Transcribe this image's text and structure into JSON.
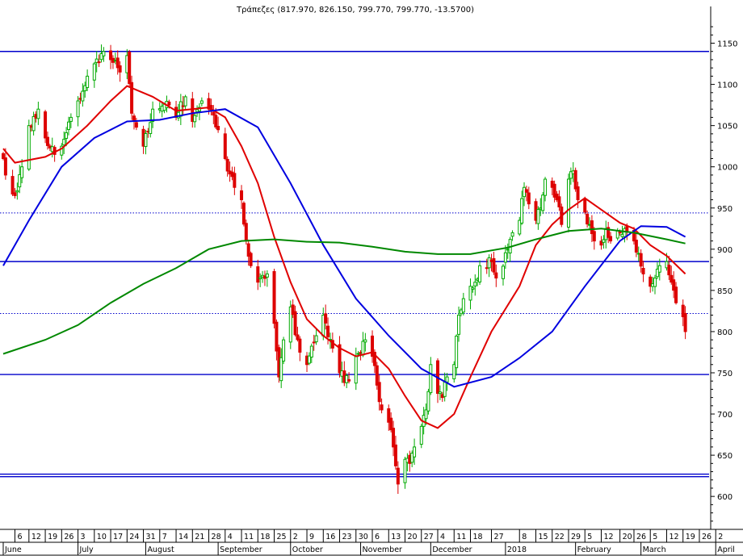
{
  "chart_data": {
    "type": "candlestick",
    "title": "Τράπεζες (817.970, 826.150, 799.770, 799.770, -13.5700)",
    "xlabel": "",
    "ylabel": "",
    "ylim": [
      560,
      1175
    ],
    "y_ticks": [
      600,
      650,
      700,
      750,
      800,
      850,
      900,
      950,
      1000,
      1050,
      1100,
      1150
    ],
    "x_range": [
      "2017-06-01",
      "2018-04-04"
    ],
    "x_day_ticks": [
      {
        "date": "2017-06-06",
        "label": "6"
      },
      {
        "date": "2017-06-12",
        "label": "12"
      },
      {
        "date": "2017-06-19",
        "label": "19"
      },
      {
        "date": "2017-06-26",
        "label": "26"
      },
      {
        "date": "2017-07-03",
        "label": "3"
      },
      {
        "date": "2017-07-10",
        "label": "10"
      },
      {
        "date": "2017-07-17",
        "label": "17"
      },
      {
        "date": "2017-07-24",
        "label": "24"
      },
      {
        "date": "2017-07-31",
        "label": "31"
      },
      {
        "date": "2017-08-07",
        "label": "7"
      },
      {
        "date": "2017-08-14",
        "label": "14"
      },
      {
        "date": "2017-08-21",
        "label": "21"
      },
      {
        "date": "2017-08-28",
        "label": "28"
      },
      {
        "date": "2017-09-04",
        "label": "4"
      },
      {
        "date": "2017-09-11",
        "label": "11"
      },
      {
        "date": "2017-09-18",
        "label": "18"
      },
      {
        "date": "2017-09-25",
        "label": "25"
      },
      {
        "date": "2017-10-02",
        "label": "2"
      },
      {
        "date": "2017-10-09",
        "label": "9"
      },
      {
        "date": "2017-10-16",
        "label": "16"
      },
      {
        "date": "2017-10-23",
        "label": "23"
      },
      {
        "date": "2017-10-30",
        "label": "30"
      },
      {
        "date": "2017-11-06",
        "label": "6"
      },
      {
        "date": "2017-11-13",
        "label": "13"
      },
      {
        "date": "2017-11-20",
        "label": "20"
      },
      {
        "date": "2017-11-27",
        "label": "27"
      },
      {
        "date": "2017-12-04",
        "label": "4"
      },
      {
        "date": "2017-12-11",
        "label": "11"
      },
      {
        "date": "2017-12-18",
        "label": "18"
      },
      {
        "date": "2017-12-27",
        "label": "27"
      },
      {
        "date": "2018-01-08",
        "label": "8"
      },
      {
        "date": "2018-01-15",
        "label": "15"
      },
      {
        "date": "2018-01-22",
        "label": "22"
      },
      {
        "date": "2018-01-29",
        "label": "29"
      },
      {
        "date": "2018-02-05",
        "label": "5"
      },
      {
        "date": "2018-02-12",
        "label": "12"
      },
      {
        "date": "2018-02-20",
        "label": "20"
      },
      {
        "date": "2018-02-26",
        "label": "26"
      },
      {
        "date": "2018-03-05",
        "label": "5"
      },
      {
        "date": "2018-03-12",
        "label": "12"
      },
      {
        "date": "2018-03-19",
        "label": "19"
      },
      {
        "date": "2018-03-26",
        "label": "26"
      },
      {
        "date": "2018-04-02",
        "label": "2"
      }
    ],
    "x_month_labels": [
      {
        "date": "2017-06-01",
        "label": "June"
      },
      {
        "date": "2017-07-03",
        "label": "July"
      },
      {
        "date": "2017-08-01",
        "label": "August"
      },
      {
        "date": "2017-09-01",
        "label": "September"
      },
      {
        "date": "2017-10-02",
        "label": "October"
      },
      {
        "date": "2017-11-01",
        "label": "November"
      },
      {
        "date": "2017-12-01",
        "label": "December"
      },
      {
        "date": "2018-01-02",
        "label": "2018"
      },
      {
        "date": "2018-02-01",
        "label": "February"
      },
      {
        "date": "2018-03-01",
        "label": "March"
      },
      {
        "date": "2018-04-02",
        "label": "April"
      }
    ],
    "horizontal_lines": [
      {
        "value": 1140,
        "style": "solid",
        "color": "#0000cc"
      },
      {
        "value": 944,
        "style": "dotted",
        "color": "#0000cc"
      },
      {
        "value": 885,
        "style": "solid",
        "color": "#0000cc"
      },
      {
        "value": 822,
        "style": "dotted",
        "color": "#0000cc"
      },
      {
        "value": 748,
        "style": "solid",
        "color": "#0000cc"
      },
      {
        "value": 627,
        "style": "solid",
        "color": "#0000cc"
      },
      {
        "value": 624,
        "style": "solid",
        "color": "#0000cc"
      }
    ],
    "anchors": [
      {
        "date": "2017-06-01",
        "close": 1010
      },
      {
        "date": "2017-06-02",
        "close": 990
      },
      {
        "date": "2017-06-06",
        "close": 965
      },
      {
        "date": "2017-06-09",
        "close": 1000
      },
      {
        "date": "2017-06-12",
        "close": 1050
      },
      {
        "date": "2017-06-16",
        "close": 1070
      },
      {
        "date": "2017-06-19",
        "close": 1035
      },
      {
        "date": "2017-06-23",
        "close": 1015
      },
      {
        "date": "2017-06-26",
        "close": 1025
      },
      {
        "date": "2017-06-30",
        "close": 1060
      },
      {
        "date": "2017-07-03",
        "close": 1080
      },
      {
        "date": "2017-07-07",
        "close": 1110
      },
      {
        "date": "2017-07-10",
        "close": 1125
      },
      {
        "date": "2017-07-14",
        "close": 1140
      },
      {
        "date": "2017-07-17",
        "close": 1130
      },
      {
        "date": "2017-07-21",
        "close": 1115
      },
      {
        "date": "2017-07-24",
        "close": 1135
      },
      {
        "date": "2017-07-26",
        "close": 1065
      },
      {
        "date": "2017-07-31",
        "close": 1025
      },
      {
        "date": "2017-08-04",
        "close": 1070
      },
      {
        "date": "2017-08-11",
        "close": 1075
      },
      {
        "date": "2017-08-14",
        "close": 1060
      },
      {
        "date": "2017-08-18",
        "close": 1085
      },
      {
        "date": "2017-08-21",
        "close": 1055
      },
      {
        "date": "2017-08-25",
        "close": 1080
      },
      {
        "date": "2017-08-28",
        "close": 1070
      },
      {
        "date": "2017-09-01",
        "close": 1045
      },
      {
        "date": "2017-09-04",
        "close": 1010
      },
      {
        "date": "2017-09-08",
        "close": 975
      },
      {
        "date": "2017-09-11",
        "close": 960
      },
      {
        "date": "2017-09-13",
        "close": 910
      },
      {
        "date": "2017-09-15",
        "close": 880
      },
      {
        "date": "2017-09-18",
        "close": 860
      },
      {
        "date": "2017-09-22",
        "close": 870
      },
      {
        "date": "2017-09-25",
        "close": 810
      },
      {
        "date": "2017-09-27",
        "close": 745
      },
      {
        "date": "2017-09-29",
        "close": 790
      },
      {
        "date": "2017-10-02",
        "close": 830
      },
      {
        "date": "2017-10-06",
        "close": 775
      },
      {
        "date": "2017-10-09",
        "close": 760
      },
      {
        "date": "2017-10-13",
        "close": 795
      },
      {
        "date": "2017-10-16",
        "close": 820
      },
      {
        "date": "2017-10-20",
        "close": 780
      },
      {
        "date": "2017-10-23",
        "close": 750
      },
      {
        "date": "2017-10-27",
        "close": 740
      },
      {
        "date": "2017-10-30",
        "close": 770
      },
      {
        "date": "2017-11-03",
        "close": 790
      },
      {
        "date": "2017-11-06",
        "close": 770
      },
      {
        "date": "2017-11-08",
        "close": 735
      },
      {
        "date": "2017-11-10",
        "close": 705
      },
      {
        "date": "2017-11-13",
        "close": 690
      },
      {
        "date": "2017-11-15",
        "close": 660
      },
      {
        "date": "2017-11-17",
        "close": 615
      },
      {
        "date": "2017-11-20",
        "close": 645
      },
      {
        "date": "2017-11-22",
        "close": 640
      },
      {
        "date": "2017-11-24",
        "close": 660
      },
      {
        "date": "2017-11-27",
        "close": 685
      },
      {
        "date": "2017-11-29",
        "close": 705
      },
      {
        "date": "2017-12-01",
        "close": 760
      },
      {
        "date": "2017-12-04",
        "close": 725
      },
      {
        "date": "2017-12-06",
        "close": 720
      },
      {
        "date": "2017-12-08",
        "close": 745
      },
      {
        "date": "2017-12-11",
        "close": 760
      },
      {
        "date": "2017-12-13",
        "close": 820
      },
      {
        "date": "2017-12-15",
        "close": 840
      },
      {
        "date": "2017-12-18",
        "close": 855
      },
      {
        "date": "2017-12-20",
        "close": 860
      },
      {
        "date": "2017-12-22",
        "close": 880
      },
      {
        "date": "2017-12-27",
        "close": 885
      },
      {
        "date": "2017-12-29",
        "close": 865
      },
      {
        "date": "2018-01-03",
        "close": 900
      },
      {
        "date": "2018-01-05",
        "close": 920
      },
      {
        "date": "2018-01-08",
        "close": 935
      },
      {
        "date": "2018-01-10",
        "close": 975
      },
      {
        "date": "2018-01-12",
        "close": 955
      },
      {
        "date": "2018-01-15",
        "close": 935
      },
      {
        "date": "2018-01-17",
        "close": 950
      },
      {
        "date": "2018-01-19",
        "close": 985
      },
      {
        "date": "2018-01-22",
        "close": 975
      },
      {
        "date": "2018-01-24",
        "close": 960
      },
      {
        "date": "2018-01-26",
        "close": 930
      },
      {
        "date": "2018-01-29",
        "close": 985
      },
      {
        "date": "2018-01-31",
        "close": 995
      },
      {
        "date": "2018-02-02",
        "close": 960
      },
      {
        "date": "2018-02-05",
        "close": 945
      },
      {
        "date": "2018-02-07",
        "close": 930
      },
      {
        "date": "2018-02-09",
        "close": 910
      },
      {
        "date": "2018-02-12",
        "close": 905
      },
      {
        "date": "2018-02-14",
        "close": 925
      },
      {
        "date": "2018-02-16",
        "close": 910
      },
      {
        "date": "2018-02-20",
        "close": 920
      },
      {
        "date": "2018-02-22",
        "close": 925
      },
      {
        "date": "2018-02-26",
        "close": 910
      },
      {
        "date": "2018-02-28",
        "close": 895
      },
      {
        "date": "2018-03-02",
        "close": 870
      },
      {
        "date": "2018-03-05",
        "close": 855
      },
      {
        "date": "2018-03-07",
        "close": 865
      },
      {
        "date": "2018-03-09",
        "close": 880
      },
      {
        "date": "2018-03-12",
        "close": 885
      },
      {
        "date": "2018-03-14",
        "close": 860
      },
      {
        "date": "2018-03-16",
        "close": 835
      },
      {
        "date": "2018-03-19",
        "close": 818
      },
      {
        "date": "2018-03-20",
        "close": 800
      }
    ],
    "moving_averages": [
      {
        "color": "#e00000",
        "points": [
          {
            "date": "2017-06-01",
            "value": 1022
          },
          {
            "date": "2017-06-06",
            "value": 1005
          },
          {
            "date": "2017-06-19",
            "value": 1012
          },
          {
            "date": "2017-06-26",
            "value": 1022
          },
          {
            "date": "2017-07-07",
            "value": 1050
          },
          {
            "date": "2017-07-17",
            "value": 1080
          },
          {
            "date": "2017-07-24",
            "value": 1098
          },
          {
            "date": "2017-08-04",
            "value": 1085
          },
          {
            "date": "2017-08-14",
            "value": 1068
          },
          {
            "date": "2017-08-28",
            "value": 1072
          },
          {
            "date": "2017-09-04",
            "value": 1060
          },
          {
            "date": "2017-09-11",
            "value": 1025
          },
          {
            "date": "2017-09-18",
            "value": 980
          },
          {
            "date": "2017-09-25",
            "value": 915
          },
          {
            "date": "2017-10-02",
            "value": 860
          },
          {
            "date": "2017-10-09",
            "value": 815
          },
          {
            "date": "2017-10-16",
            "value": 795
          },
          {
            "date": "2017-10-23",
            "value": 780
          },
          {
            "date": "2017-10-30",
            "value": 770
          },
          {
            "date": "2017-11-06",
            "value": 775
          },
          {
            "date": "2017-11-13",
            "value": 755
          },
          {
            "date": "2017-11-20",
            "value": 722
          },
          {
            "date": "2017-11-27",
            "value": 692
          },
          {
            "date": "2017-12-04",
            "value": 683
          },
          {
            "date": "2017-12-11",
            "value": 700
          },
          {
            "date": "2017-12-18",
            "value": 745
          },
          {
            "date": "2017-12-27",
            "value": 800
          },
          {
            "date": "2018-01-08",
            "value": 855
          },
          {
            "date": "2018-01-15",
            "value": 905
          },
          {
            "date": "2018-01-22",
            "value": 930
          },
          {
            "date": "2018-01-29",
            "value": 948
          },
          {
            "date": "2018-02-05",
            "value": 962
          },
          {
            "date": "2018-02-12",
            "value": 948
          },
          {
            "date": "2018-02-20",
            "value": 932
          },
          {
            "date": "2018-02-26",
            "value": 925
          },
          {
            "date": "2018-03-05",
            "value": 905
          },
          {
            "date": "2018-03-12",
            "value": 892
          },
          {
            "date": "2018-03-20",
            "value": 870
          }
        ]
      },
      {
        "color": "#0000e0",
        "points": [
          {
            "date": "2017-06-01",
            "value": 880
          },
          {
            "date": "2017-06-12",
            "value": 935
          },
          {
            "date": "2017-06-26",
            "value": 1000
          },
          {
            "date": "2017-07-10",
            "value": 1035
          },
          {
            "date": "2017-07-24",
            "value": 1055
          },
          {
            "date": "2017-08-07",
            "value": 1057
          },
          {
            "date": "2017-08-21",
            "value": 1065
          },
          {
            "date": "2017-09-04",
            "value": 1070
          },
          {
            "date": "2017-09-18",
            "value": 1048
          },
          {
            "date": "2017-10-02",
            "value": 980
          },
          {
            "date": "2017-10-16",
            "value": 905
          },
          {
            "date": "2017-10-30",
            "value": 840
          },
          {
            "date": "2017-11-13",
            "value": 795
          },
          {
            "date": "2017-11-27",
            "value": 755
          },
          {
            "date": "2017-12-11",
            "value": 733
          },
          {
            "date": "2017-12-27",
            "value": 745
          },
          {
            "date": "2018-01-08",
            "value": 768
          },
          {
            "date": "2018-01-22",
            "value": 800
          },
          {
            "date": "2018-02-05",
            "value": 855
          },
          {
            "date": "2018-02-20",
            "value": 910
          },
          {
            "date": "2018-03-01",
            "value": 928
          },
          {
            "date": "2018-03-12",
            "value": 927
          },
          {
            "date": "2018-03-20",
            "value": 915
          }
        ]
      },
      {
        "color": "#008800",
        "points": [
          {
            "date": "2017-06-01",
            "value": 773
          },
          {
            "date": "2017-06-19",
            "value": 790
          },
          {
            "date": "2017-07-03",
            "value": 808
          },
          {
            "date": "2017-07-17",
            "value": 835
          },
          {
            "date": "2017-07-31",
            "value": 858
          },
          {
            "date": "2017-08-14",
            "value": 877
          },
          {
            "date": "2017-08-28",
            "value": 900
          },
          {
            "date": "2017-09-11",
            "value": 910
          },
          {
            "date": "2017-09-25",
            "value": 912
          },
          {
            "date": "2017-10-09",
            "value": 909
          },
          {
            "date": "2017-10-23",
            "value": 908
          },
          {
            "date": "2017-11-06",
            "value": 903
          },
          {
            "date": "2017-11-20",
            "value": 897
          },
          {
            "date": "2017-12-04",
            "value": 894
          },
          {
            "date": "2017-12-18",
            "value": 894
          },
          {
            "date": "2018-01-03",
            "value": 902
          },
          {
            "date": "2018-01-15",
            "value": 912
          },
          {
            "date": "2018-01-29",
            "value": 922
          },
          {
            "date": "2018-02-12",
            "value": 925
          },
          {
            "date": "2018-02-26",
            "value": 920
          },
          {
            "date": "2018-03-12",
            "value": 912
          },
          {
            "date": "2018-03-20",
            "value": 907
          }
        ]
      }
    ],
    "colors": {
      "up": "#00aa00",
      "down": "#dd0000",
      "background": "#ffffff",
      "axis": "#000000"
    }
  }
}
